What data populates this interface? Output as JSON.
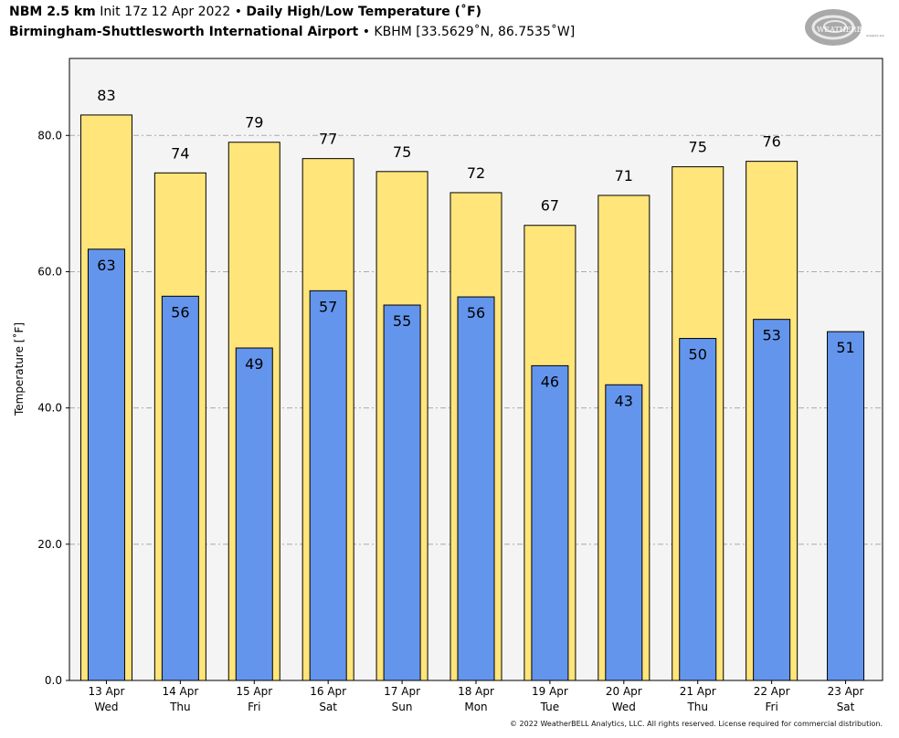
{
  "header": {
    "model": "NBM 2.5 km",
    "init": "Init 17z 12 Apr 2022",
    "sep": "•",
    "title": "Daily High/Low Temperature (˚F)",
    "location": "Birmingham-Shuttlesworth International Airport",
    "station": "KBHM [33.5629˚N, 86.7535˚W]"
  },
  "logo": {
    "text": "WEATHERBELL",
    "sub": "Analytics LLC"
  },
  "footer": {
    "copyright": "© 2022 WeatherBELL Analytics, LLC. All rights reserved. License required for commercial distribution."
  },
  "colors": {
    "high": "#ffe57a",
    "low": "#6495ed",
    "plot_bg": "#f4f4f4",
    "grid": "#aaaaaa"
  },
  "chart_data": {
    "type": "bar",
    "ylabel": "Temperature [˚F]",
    "ylim": [
      0,
      91.3
    ],
    "yticks": [
      0,
      20,
      40,
      60,
      80
    ],
    "ytick_labels": [
      "0.0",
      "20.0",
      "40.0",
      "60.0",
      "80.0"
    ],
    "grid": true,
    "categories": [
      {
        "date": "13 Apr",
        "day": "Wed"
      },
      {
        "date": "14 Apr",
        "day": "Thu"
      },
      {
        "date": "15 Apr",
        "day": "Fri"
      },
      {
        "date": "16 Apr",
        "day": "Sat"
      },
      {
        "date": "17 Apr",
        "day": "Sun"
      },
      {
        "date": "18 Apr",
        "day": "Mon"
      },
      {
        "date": "19 Apr",
        "day": "Tue"
      },
      {
        "date": "20 Apr",
        "day": "Wed"
      },
      {
        "date": "21 Apr",
        "day": "Thu"
      },
      {
        "date": "22 Apr",
        "day": "Fri"
      },
      {
        "date": "23 Apr",
        "day": "Sat"
      }
    ],
    "series": [
      {
        "key": "high",
        "values": [
          83,
          74.5,
          79,
          76.6,
          74.7,
          71.6,
          66.8,
          71.2,
          75.4,
          76.2,
          null
        ],
        "labels": [
          "83",
          "74",
          "79",
          "77",
          "75",
          "72",
          "67",
          "71",
          "75",
          "76",
          ""
        ]
      },
      {
        "key": "low",
        "values": [
          63.3,
          56.4,
          48.8,
          57.2,
          55.1,
          56.3,
          46.2,
          43.4,
          50.2,
          53,
          51.2
        ],
        "labels": [
          "63",
          "56",
          "49",
          "57",
          "55",
          "56",
          "46",
          "43",
          "50",
          "53",
          "51"
        ]
      }
    ]
  }
}
